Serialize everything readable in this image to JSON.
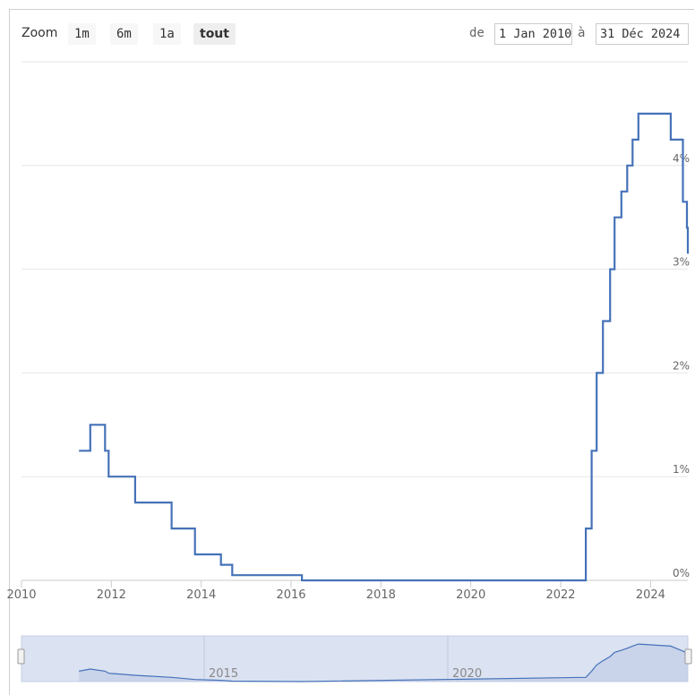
{
  "rangeSelector": {
    "zoom_label": "Zoom",
    "buttons": [
      "1m",
      "6m",
      "1a",
      "tout"
    ],
    "selected": "tout",
    "from_label": "de",
    "from_value": "1 Jan 2010",
    "to_label": "à",
    "to_value": "31 Déc 2024"
  },
  "navigator_labels": [
    "2015",
    "2020"
  ],
  "colors": {
    "series": "#4572b8",
    "navigator_mask": "#dbe2f1",
    "grid": "#e6e6e6"
  },
  "chart_data": {
    "type": "line",
    "step": true,
    "title": "",
    "xlabel": "",
    "ylabel": "",
    "xlim": [
      2010,
      2024.83
    ],
    "ylim": [
      0,
      5
    ],
    "x_ticks": [
      "2010",
      "2012",
      "2014",
      "2016",
      "2018",
      "2020",
      "2022",
      "2024"
    ],
    "y_ticks": [
      "0%",
      "1%",
      "2%",
      "3%",
      "4%"
    ],
    "series": [
      {
        "values": [
          [
            2011.28,
            1.25
          ],
          [
            2011.53,
            1.5
          ],
          [
            2011.86,
            1.25
          ],
          [
            2011.94,
            1.0
          ],
          [
            2012.53,
            0.75
          ],
          [
            2013.34,
            0.5
          ],
          [
            2013.86,
            0.25
          ],
          [
            2014.44,
            0.15
          ],
          [
            2014.69,
            0.05
          ],
          [
            2016.24,
            0.0
          ],
          [
            2022.56,
            0.5
          ],
          [
            2022.69,
            1.25
          ],
          [
            2022.8,
            2.0
          ],
          [
            2022.94,
            2.5
          ],
          [
            2023.1,
            3.0
          ],
          [
            2023.2,
            3.5
          ],
          [
            2023.35,
            3.75
          ],
          [
            2023.48,
            4.0
          ],
          [
            2023.6,
            4.25
          ],
          [
            2023.73,
            4.5
          ],
          [
            2024.45,
            4.25
          ],
          [
            2024.72,
            3.65
          ],
          [
            2024.81,
            3.4
          ],
          [
            2024.83,
            3.15
          ]
        ]
      }
    ],
    "grid": true
  }
}
